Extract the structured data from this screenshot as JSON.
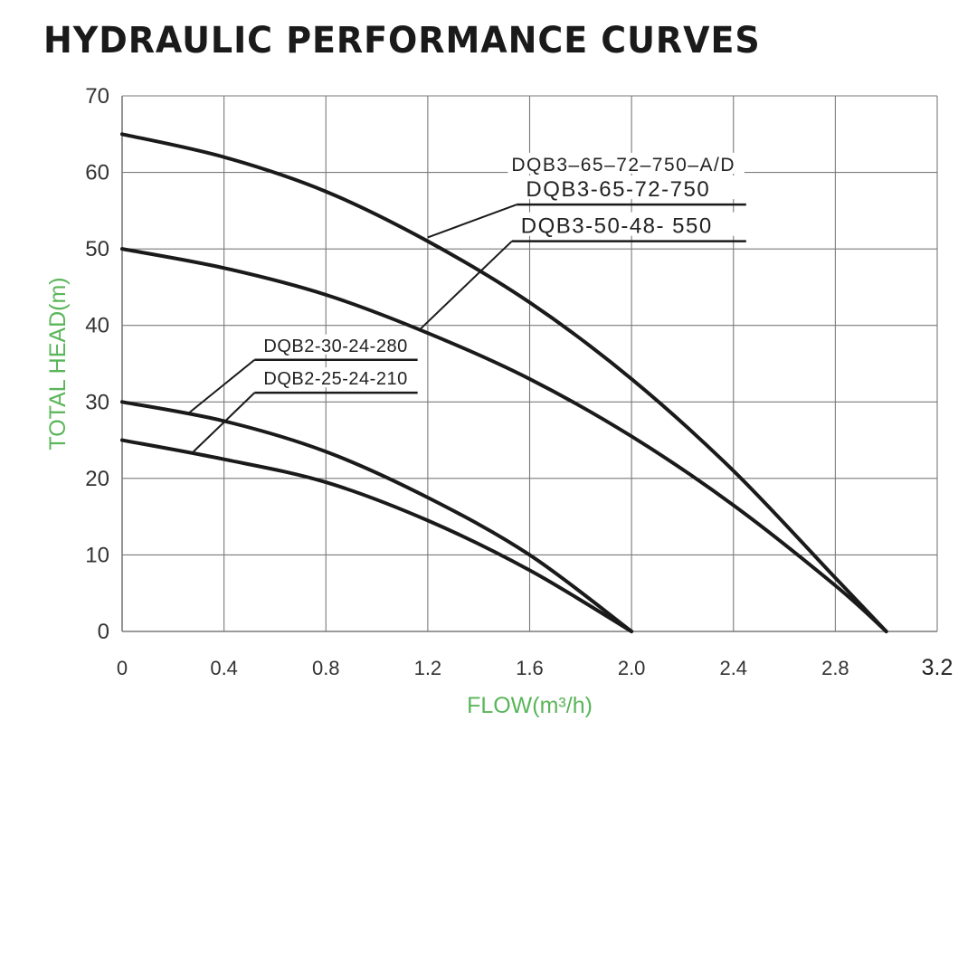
{
  "chart_data": {
    "type": "line",
    "title": "HYDRAULIC PERFORMANCE CURVES",
    "xlabel": "FLOW(m³/h)",
    "ylabel": "TOTAL HEAD(m)",
    "xlim": [
      0,
      3.2
    ],
    "ylim": [
      0,
      70
    ],
    "grid": true,
    "x_ticks": [
      "0",
      "0.4",
      "0.8",
      "1.2",
      "1.6",
      "2.0",
      "2.4",
      "2.8",
      "3.2"
    ],
    "x_tick_values": [
      0,
      0.4,
      0.8,
      1.2,
      1.6,
      2.0,
      2.4,
      2.8,
      3.2
    ],
    "y_ticks": [
      "0",
      "10",
      "20",
      "30",
      "40",
      "50",
      "60",
      "70"
    ],
    "y_tick_values": [
      0,
      10,
      20,
      30,
      40,
      50,
      60,
      70
    ],
    "series": [
      {
        "name": "DQB3-65-72-750",
        "x": [
          0,
          0.4,
          0.8,
          1.2,
          1.6,
          2.0,
          2.4,
          2.8,
          3.0
        ],
        "y": [
          65,
          62,
          57.5,
          51,
          43,
          33,
          21,
          7,
          0
        ]
      },
      {
        "name": "DQB3-50-48-550",
        "x": [
          0,
          0.4,
          0.8,
          1.2,
          1.6,
          2.0,
          2.4,
          2.8,
          3.0
        ],
        "y": [
          50,
          47.5,
          44,
          39,
          33,
          25.5,
          16.5,
          6,
          0
        ]
      },
      {
        "name": "DQB2-30-24-280",
        "x": [
          0,
          0.4,
          0.8,
          1.2,
          1.6,
          2.0
        ],
        "y": [
          30,
          27.5,
          23.5,
          17.5,
          10,
          0
        ]
      },
      {
        "name": "DQB2-25-24-210",
        "x": [
          0,
          0.4,
          0.8,
          1.2,
          1.6,
          2.0
        ],
        "y": [
          25,
          22.5,
          19.5,
          14.5,
          8,
          0
        ]
      }
    ],
    "annotations": [
      {
        "text": "DQB3–65–72–750–A/D",
        "target_series": 0,
        "point": [
          1.2,
          51.5
        ],
        "anchor": [
          1.55,
          60.5
        ],
        "underline_to": 2.45
      },
      {
        "text": "DQB3-65-72-750",
        "target_series": 0,
        "point": [
          1.2,
          51.5
        ],
        "anchor": [
          1.55,
          55.8
        ],
        "underline_to": 2.45
      },
      {
        "text": "DQB3-50-48- 550",
        "target_series": 1,
        "point": [
          1.17,
          39.5
        ],
        "anchor": [
          1.53,
          51
        ],
        "underline_to": 2.45
      },
      {
        "text": "DQB2-30-24-280",
        "target_series": 2,
        "point": [
          0.26,
          28.5
        ],
        "anchor": [
          0.52,
          35.5
        ],
        "underline_to": 1.16
      },
      {
        "text": "DQB2-25-24-210",
        "target_series": 3,
        "point": [
          0.28,
          23.5
        ],
        "anchor": [
          0.52,
          31.2
        ],
        "underline_to": 1.16
      }
    ],
    "colors": {
      "curve": "#1a1a1a",
      "grid": "#7a7a7a",
      "axis_label": "#5ab55a",
      "tick": "#333333"
    }
  }
}
